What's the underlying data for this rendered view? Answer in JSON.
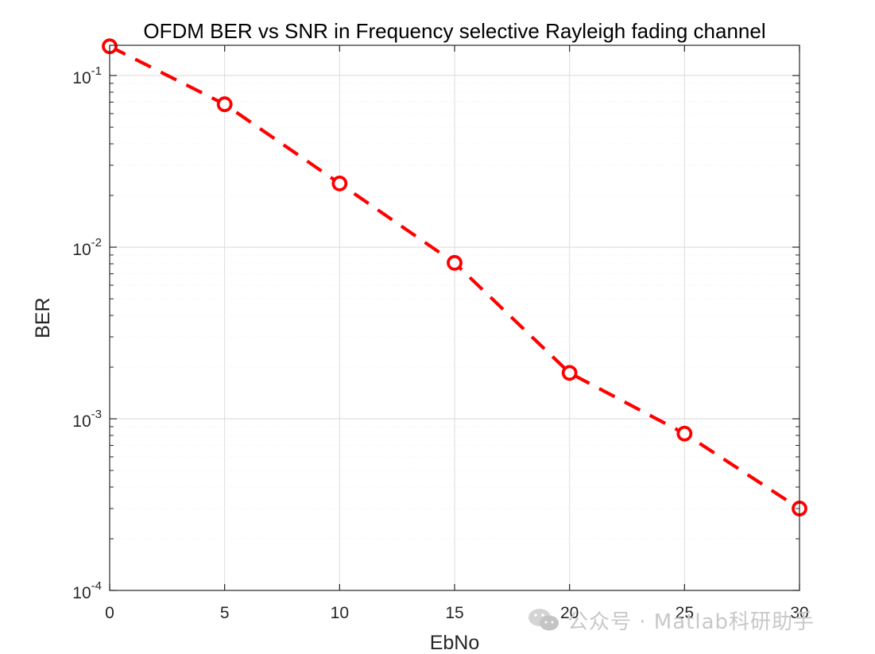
{
  "chart_data": {
    "type": "line",
    "title": "OFDM BER vs SNR in Frequency selective Rayleigh fading channel",
    "xlabel": "EbNo",
    "ylabel": "BER",
    "xlim": [
      0,
      30
    ],
    "ylim": [
      0.0001,
      0.15
    ],
    "yscale": "log",
    "grid": true,
    "x": [
      0,
      5,
      10,
      15,
      20,
      25,
      30
    ],
    "x_ticks": [
      0,
      5,
      10,
      15,
      20,
      25,
      30
    ],
    "y_ticks": [
      {
        "base": "10",
        "exp": "-1",
        "value": 0.1
      },
      {
        "base": "10",
        "exp": "-2",
        "value": 0.01
      },
      {
        "base": "10",
        "exp": "-3",
        "value": 0.001
      },
      {
        "base": "10",
        "exp": "-4",
        "value": 0.0001
      }
    ],
    "series": [
      {
        "values": [
          0.148,
          0.068,
          0.0235,
          0.0081,
          0.00185,
          0.00082,
          0.0003
        ],
        "color": "#ff0000",
        "line_style": "dashed",
        "marker": "circle"
      }
    ]
  },
  "watermark": {
    "text": "公众号 · Matlab科研助手",
    "icon": "wechat-icon"
  }
}
